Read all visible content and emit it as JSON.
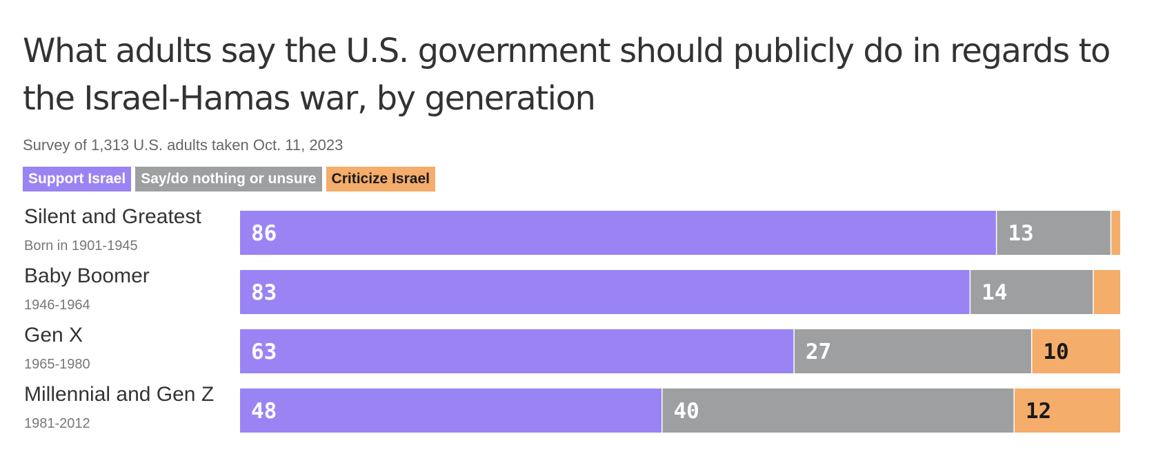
{
  "title": "What adults say the U.S. government should publicly do in regards to the Israel-Hamas war, by generation",
  "subtitle": "Survey of 1,313 U.S. adults taken Oct. 11, 2023",
  "colors": {
    "support": "#9a84f4",
    "nothing": "#9e9fa0",
    "criticize": "#f4ad6a",
    "label_light": "#ffffff",
    "label_dark": "#1a1a1a"
  },
  "chart_data": {
    "type": "bar",
    "orientation": "horizontal",
    "stacked": true,
    "title": "What adults say the U.S. government should publicly do in regards to the Israel-Hamas war, by generation",
    "subtitle": "Survey of 1,313 U.S. adults taken Oct. 11, 2023",
    "categories": [
      "Silent and Greatest",
      "Baby Boomer",
      "Gen X",
      "Millennial and Gen Z"
    ],
    "category_subtitles": [
      "Born in 1901-1945",
      "1946-1964",
      "1965-1980",
      "1981-2012"
    ],
    "series": [
      {
        "name": "Support Israel",
        "values": [
          86,
          83,
          63,
          48
        ]
      },
      {
        "name": "Say/do nothing or unsure",
        "values": [
          13,
          14,
          27,
          40
        ]
      },
      {
        "name": "Criticize Israel",
        "values": [
          1,
          3,
          10,
          12
        ]
      }
    ],
    "value_labels_shown": [
      [
        true,
        true,
        true,
        true
      ],
      [
        true,
        true,
        true,
        true
      ],
      [
        false,
        false,
        true,
        true
      ]
    ],
    "xlim": [
      0,
      100
    ],
    "grid": false,
    "legend": "top-left"
  }
}
